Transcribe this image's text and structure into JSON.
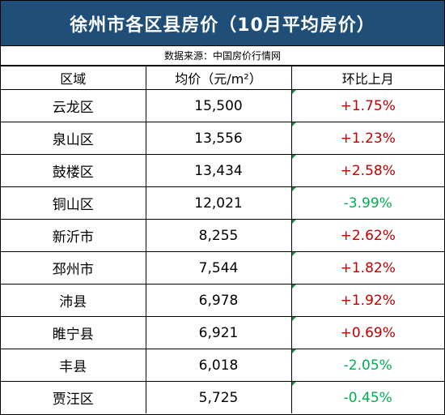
{
  "title": "徐州市各区县房价（10月平均房价）",
  "source": "数据来源：中国房价行情网",
  "colors": {
    "header_bg": "#1f4e79",
    "rise": "#c00000",
    "fall": "#00b050"
  },
  "headers": {
    "district": "区域",
    "price": "均价（元/m²）",
    "change": "环比上月"
  },
  "rows": [
    {
      "district": "云龙区",
      "price": "15,500",
      "change": "+1.75%",
      "trend": "up"
    },
    {
      "district": "泉山区",
      "price": "13,556",
      "change": "+1.23%",
      "trend": "up"
    },
    {
      "district": "鼓楼区",
      "price": "13,434",
      "change": "+2.58%",
      "trend": "up"
    },
    {
      "district": "铜山区",
      "price": "12,021",
      "change": "-3.99%",
      "trend": "down"
    },
    {
      "district": "新沂市",
      "price": "8,255",
      "change": "+2.62%",
      "trend": "up"
    },
    {
      "district": "邳州市",
      "price": "7,544",
      "change": "+1.82%",
      "trend": "up"
    },
    {
      "district": "沛县",
      "price": "6,978",
      "change": "+1.92%",
      "trend": "up"
    },
    {
      "district": "睢宁县",
      "price": "6,921",
      "change": "+0.69%",
      "trend": "up"
    },
    {
      "district": "丰县",
      "price": "6,018",
      "change": "-2.05%",
      "trend": "down"
    },
    {
      "district": "贾汪区",
      "price": "5,725",
      "change": "-0.45%",
      "trend": "down"
    }
  ]
}
